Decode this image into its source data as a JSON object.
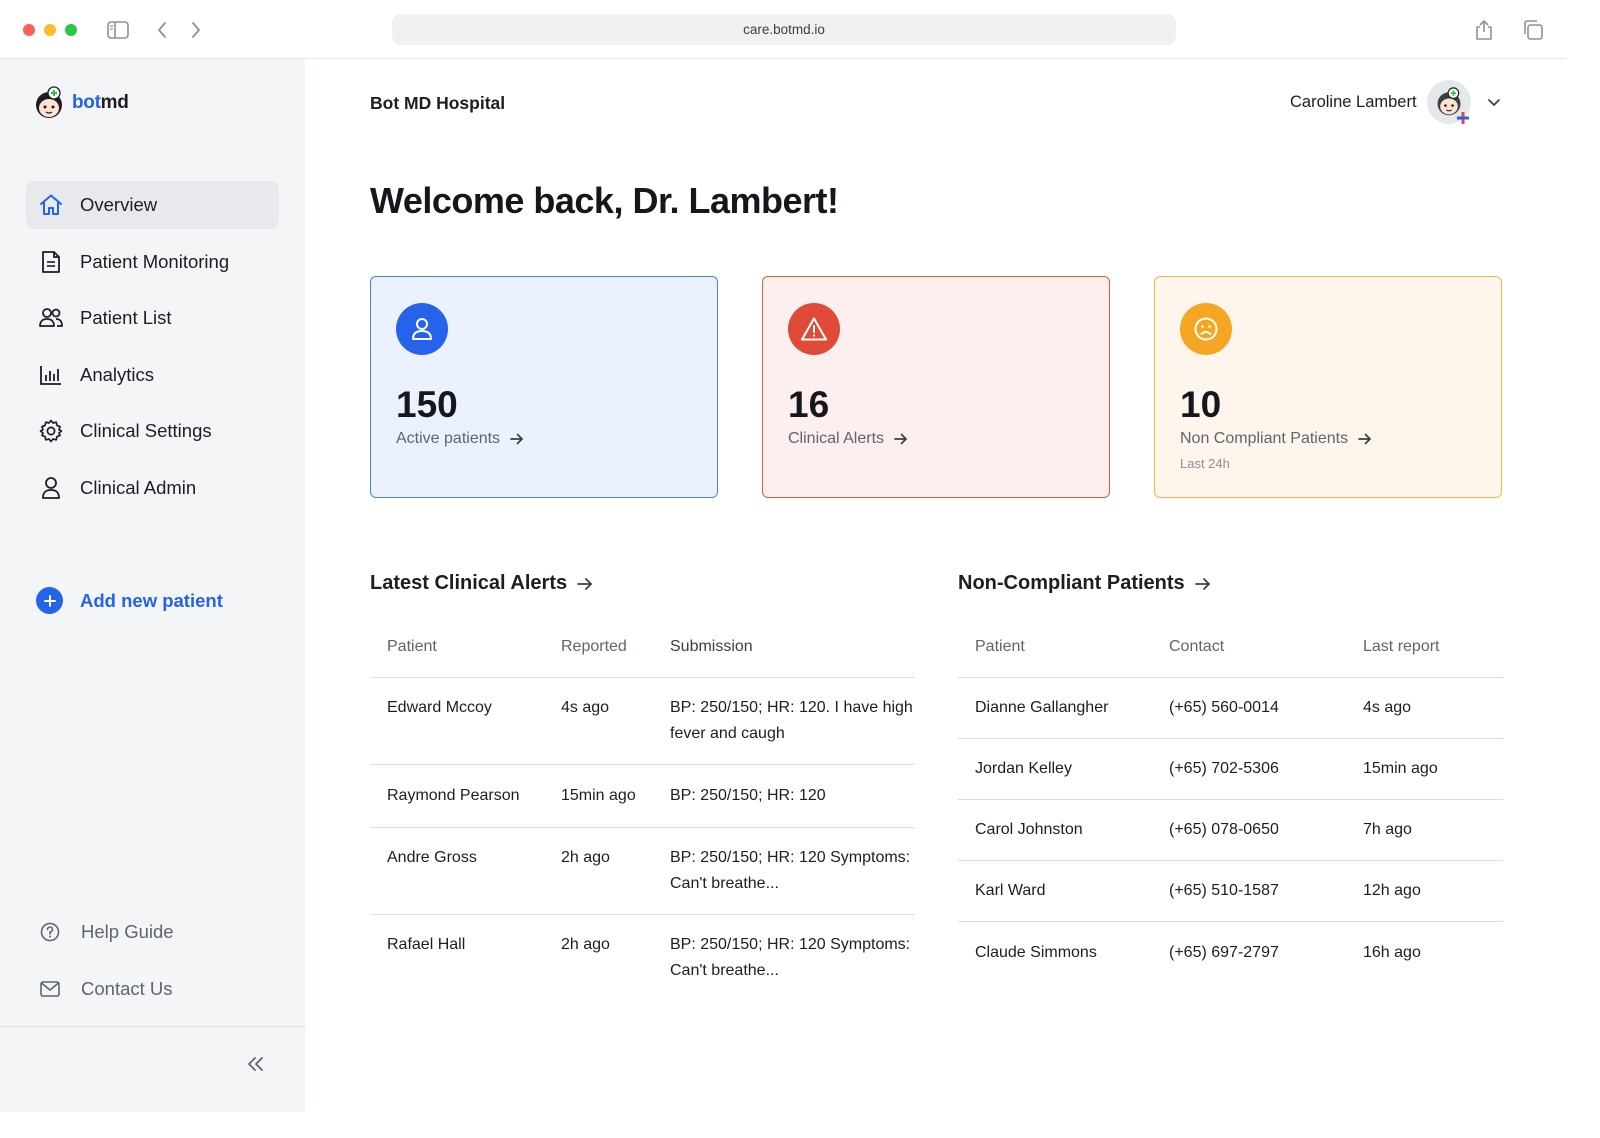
{
  "browser": {
    "url": "care.botmd.io"
  },
  "sidebar": {
    "logo": {
      "prefix": "bot",
      "suffix": "md"
    },
    "items": [
      {
        "label": "Overview",
        "icon": "home-icon",
        "active": true
      },
      {
        "label": "Patient Monitoring",
        "icon": "document-icon"
      },
      {
        "label": "Patient List",
        "icon": "users-icon"
      },
      {
        "label": "Analytics",
        "icon": "bar-chart-icon"
      },
      {
        "label": "Clinical Settings",
        "icon": "gear-icon"
      },
      {
        "label": "Clinical Admin",
        "icon": "user-icon"
      }
    ],
    "add_patient": "Add new patient",
    "help": "Help Guide",
    "contact": "Contact Us"
  },
  "header": {
    "hospital": "Bot MD Hospital",
    "user_name": "Caroline Lambert"
  },
  "welcome": "Welcome back, Dr. Lambert!",
  "cards": [
    {
      "value": "150",
      "label": "Active patients",
      "color": "#2563eb"
    },
    {
      "value": "16",
      "label": "Clinical Alerts",
      "color": "#e04a38"
    },
    {
      "value": "10",
      "label": "Non Compliant Patients",
      "sub": "Last 24h",
      "color": "#f5a623"
    }
  ],
  "alerts": {
    "title": "Latest Clinical Alerts",
    "columns": [
      "Patient",
      "Reported",
      "Submission"
    ],
    "rows": [
      {
        "patient": "Edward Mccoy",
        "reported": "4s ago",
        "submission": "BP: 250/150; HR: 120. I have high fever and caugh"
      },
      {
        "patient": "Raymond Pearson",
        "reported": "15min ago",
        "submission": "BP: 250/150; HR: 120"
      },
      {
        "patient": "Andre Gross",
        "reported": "2h ago",
        "submission": "BP: 250/150; HR: 120 Symptoms: Can't breathe..."
      },
      {
        "patient": "Rafael Hall",
        "reported": "2h ago",
        "submission": "BP: 250/150; HR: 120 Symptoms: Can't breathe..."
      }
    ]
  },
  "noncompliant": {
    "title": "Non-Compliant Patients",
    "columns": [
      "Patient",
      "Contact",
      "Last report"
    ],
    "rows": [
      {
        "patient": "Dianne Gallangher",
        "contact": "(+65) 560-0014",
        "last": "4s ago"
      },
      {
        "patient": "Jordan Kelley",
        "contact": "(+65) 702-5306",
        "last": "15min ago"
      },
      {
        "patient": "Carol Johnston",
        "contact": "(+65) 078-0650",
        "last": "7h ago"
      },
      {
        "patient": "Karl Ward",
        "contact": "(+65) 510-1587",
        "last": "12h ago"
      },
      {
        "patient": "Claude Simmons",
        "contact": "(+65) 697-2797",
        "last": "16h ago"
      }
    ]
  }
}
